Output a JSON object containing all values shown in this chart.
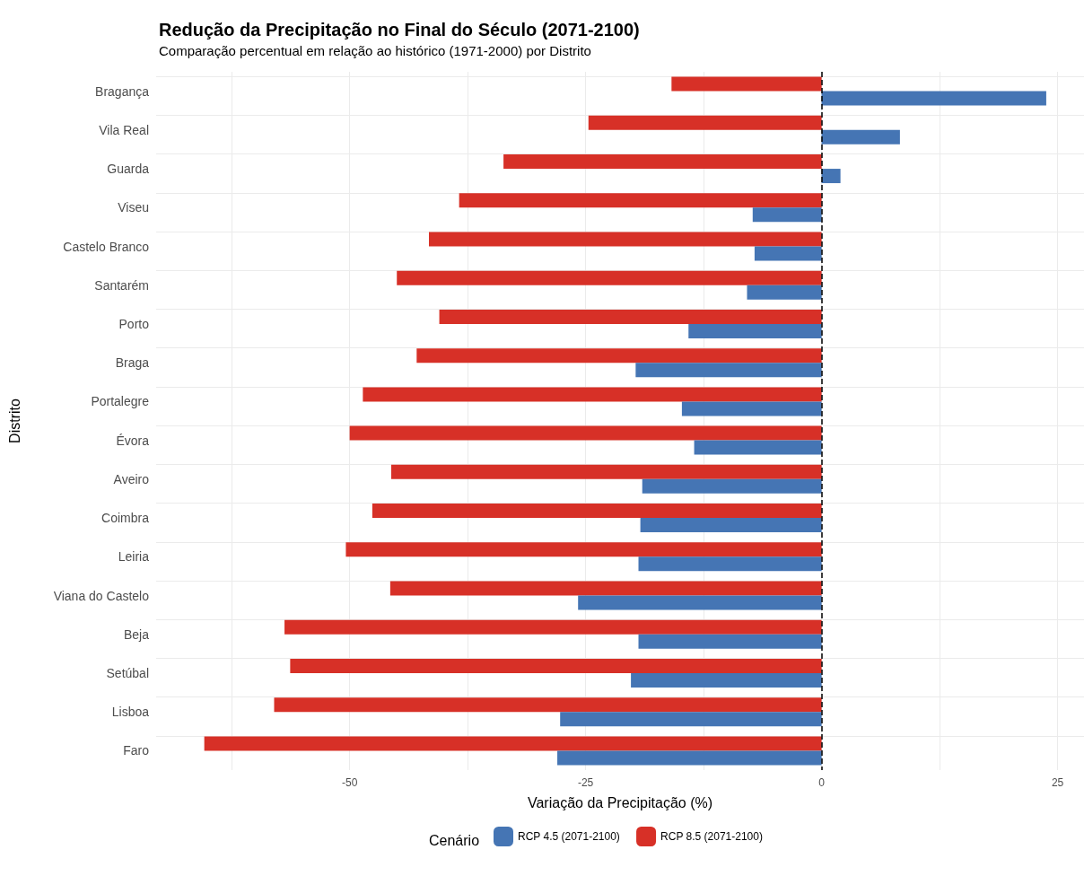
{
  "chart_data": {
    "type": "bar",
    "orientation": "horizontal",
    "title": "Redução da Precipitação no Final do Século (2071-2100)",
    "subtitle": "Comparação percentual em relação ao histórico (1971-2000) por Distrito",
    "xlabel": "Variação da Precipitação (%)",
    "ylabel": "Distrito",
    "legend_title": "Cenário",
    "legend": "bottom",
    "grid": true,
    "categories": [
      "Bragança",
      "Vila Real",
      "Guarda",
      "Viseu",
      "Castelo Branco",
      "Santarém",
      "Porto",
      "Braga",
      "Portalegre",
      "Évora",
      "Aveiro",
      "Coimbra",
      "Leiria",
      "Viana do Castelo",
      "Beja",
      "Setúbal",
      "Lisboa",
      "Faro"
    ],
    "series": [
      {
        "name": "RCP 4.5 (2071-2100)",
        "color": "#4575b4",
        "values": [
          23.8,
          8.3,
          2.0,
          -7.3,
          -7.1,
          -7.9,
          -14.1,
          -19.7,
          -14.8,
          -13.5,
          -19.0,
          -19.2,
          -19.4,
          -25.8,
          -19.4,
          -20.2,
          -27.7,
          -28.0
        ]
      },
      {
        "name": "RCP 8.5 (2071-2100)",
        "color": "#d73027",
        "values": [
          -15.9,
          -24.7,
          -33.7,
          -38.4,
          -41.6,
          -45.0,
          -40.5,
          -42.9,
          -48.6,
          -50.0,
          -45.6,
          -47.6,
          -50.4,
          -45.7,
          -56.9,
          -56.3,
          -58.0,
          -65.4
        ]
      }
    ],
    "xlim": [
      -70.5,
      27.8
    ],
    "xticks": [
      {
        "value": -62.5,
        "label": null
      },
      -50,
      {
        "value": -37.5,
        "label": null
      },
      -25,
      {
        "value": -12.5,
        "label": null
      },
      0,
      {
        "value": 12.5,
        "label": null
      },
      25
    ],
    "ref_lines": [
      {
        "axis": "x",
        "value": 0,
        "color": "#000000",
        "line_style": "dashed"
      }
    ]
  }
}
